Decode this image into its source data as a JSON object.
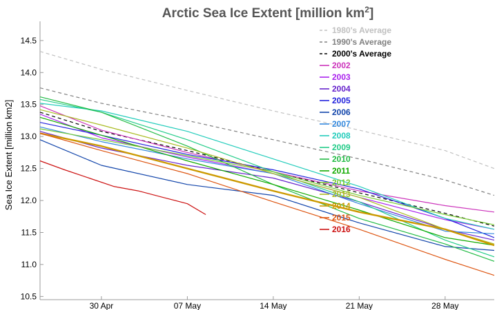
{
  "chart_data": {
    "type": "line",
    "title": "Arctic Sea Ice Extent [million km",
    "title_sup": "2",
    "title_end": "]",
    "xlabel": "",
    "ylabel": "Sea Ice Extent [million km2]",
    "x_range_days": [
      25,
      62
    ],
    "x_ticks": [
      {
        "day": 30,
        "label": "30 Apr"
      },
      {
        "day": 37,
        "label": "07 May"
      },
      {
        "day": 44,
        "label": "14 May"
      },
      {
        "day": 51,
        "label": "21 May"
      },
      {
        "day": 58,
        "label": "28 May"
      }
    ],
    "y_range": [
      10.45,
      14.8
    ],
    "y_ticks": [
      10.5,
      11.0,
      11.5,
      12.0,
      12.5,
      13.0,
      13.5,
      14.0,
      14.5
    ],
    "grid": false,
    "legend_position": "top-right",
    "series": [
      {
        "name": "1980's Average",
        "color": "#c0c0c0",
        "dash": true,
        "width": 1.2,
        "points": [
          [
            25,
            14.33
          ],
          [
            30,
            14.05
          ],
          [
            37,
            13.72
          ],
          [
            44,
            13.4
          ],
          [
            51,
            13.1
          ],
          [
            58,
            12.78
          ],
          [
            62,
            12.5
          ]
        ]
      },
      {
        "name": "1990's Average",
        "color": "#808080",
        "dash": true,
        "width": 1.2,
        "points": [
          [
            25,
            13.76
          ],
          [
            30,
            13.52
          ],
          [
            37,
            13.25
          ],
          [
            44,
            12.95
          ],
          [
            51,
            12.65
          ],
          [
            58,
            12.32
          ],
          [
            62,
            12.08
          ]
        ]
      },
      {
        "name": "2000's Average",
        "color": "#000000",
        "dash": true,
        "width": 1.2,
        "points": [
          [
            25,
            13.38
          ],
          [
            30,
            13.08
          ],
          [
            37,
            12.78
          ],
          [
            44,
            12.45
          ],
          [
            51,
            12.12
          ],
          [
            58,
            11.8
          ],
          [
            62,
            11.6
          ]
        ]
      },
      {
        "name": "2002",
        "color": "#cc33bb",
        "dash": false,
        "width": 1.2,
        "points": [
          [
            25,
            13.48
          ],
          [
            30,
            13.1
          ],
          [
            37,
            12.75
          ],
          [
            44,
            12.45
          ],
          [
            51,
            12.15
          ],
          [
            58,
            11.92
          ],
          [
            62,
            11.82
          ]
        ]
      },
      {
        "name": "2003",
        "color": "#aa22ee",
        "dash": false,
        "width": 1.2,
        "points": [
          [
            25,
            13.35
          ],
          [
            30,
            12.98
          ],
          [
            37,
            12.68
          ],
          [
            44,
            12.42
          ],
          [
            51,
            12.05
          ],
          [
            58,
            11.7
          ],
          [
            62,
            11.55
          ]
        ]
      },
      {
        "name": "2004",
        "color": "#6622cc",
        "dash": false,
        "width": 1.2,
        "points": [
          [
            25,
            13.08
          ],
          [
            30,
            12.82
          ],
          [
            37,
            12.55
          ],
          [
            44,
            12.35
          ],
          [
            51,
            11.98
          ],
          [
            58,
            11.55
          ],
          [
            62,
            11.38
          ]
        ]
      },
      {
        "name": "2005",
        "color": "#2222dd",
        "dash": false,
        "width": 1.2,
        "points": [
          [
            25,
            13.22
          ],
          [
            30,
            13.02
          ],
          [
            37,
            12.72
          ],
          [
            44,
            12.48
          ],
          [
            51,
            12.18
          ],
          [
            58,
            11.72
          ],
          [
            62,
            11.42
          ]
        ]
      },
      {
        "name": "2006",
        "color": "#1144aa",
        "dash": false,
        "width": 1.2,
        "points": [
          [
            25,
            12.95
          ],
          [
            30,
            12.55
          ],
          [
            37,
            12.25
          ],
          [
            44,
            12.08
          ],
          [
            51,
            11.65
          ],
          [
            58,
            11.28
          ],
          [
            62,
            11.22
          ]
        ]
      },
      {
        "name": "2007",
        "color": "#3388dd",
        "dash": false,
        "width": 1.2,
        "points": [
          [
            25,
            13.15
          ],
          [
            30,
            12.92
          ],
          [
            37,
            12.65
          ],
          [
            44,
            12.42
          ],
          [
            51,
            11.95
          ],
          [
            58,
            11.52
          ],
          [
            62,
            11.48
          ]
        ]
      },
      {
        "name": "2008",
        "color": "#22ccbb",
        "dash": false,
        "width": 1.2,
        "points": [
          [
            25,
            13.52
          ],
          [
            30,
            13.4
          ],
          [
            37,
            13.08
          ],
          [
            44,
            12.65
          ],
          [
            51,
            12.22
          ],
          [
            58,
            11.72
          ],
          [
            62,
            11.55
          ]
        ]
      },
      {
        "name": "2009",
        "color": "#22cc88",
        "dash": false,
        "width": 1.2,
        "points": [
          [
            25,
            13.58
          ],
          [
            30,
            13.38
          ],
          [
            37,
            12.95
          ],
          [
            44,
            12.45
          ],
          [
            51,
            11.98
          ],
          [
            58,
            11.38
          ],
          [
            62,
            11.12
          ]
        ]
      },
      {
        "name": "2010",
        "color": "#22bb44",
        "dash": false,
        "width": 1.2,
        "points": [
          [
            25,
            13.62
          ],
          [
            30,
            13.38
          ],
          [
            37,
            12.85
          ],
          [
            44,
            12.25
          ],
          [
            51,
            11.72
          ],
          [
            58,
            11.32
          ],
          [
            62,
            11.05
          ]
        ]
      },
      {
        "name": "2011",
        "color": "#11aa00",
        "dash": false,
        "width": 1.2,
        "points": [
          [
            25,
            13.3
          ],
          [
            30,
            13.02
          ],
          [
            37,
            12.62
          ],
          [
            44,
            12.25
          ],
          [
            51,
            11.85
          ],
          [
            58,
            11.42
          ],
          [
            62,
            11.3
          ]
        ]
      },
      {
        "name": "2012",
        "color": "#77cc33",
        "dash": false,
        "width": 1.2,
        "points": [
          [
            25,
            13.12
          ],
          [
            30,
            12.95
          ],
          [
            37,
            12.7
          ],
          [
            44,
            12.45
          ],
          [
            51,
            12.08
          ],
          [
            58,
            11.78
          ],
          [
            62,
            11.62
          ]
        ]
      },
      {
        "name": "2013",
        "color": "#aabb22",
        "dash": false,
        "width": 1.2,
        "points": [
          [
            25,
            13.42
          ],
          [
            30,
            13.18
          ],
          [
            37,
            12.82
          ],
          [
            44,
            12.42
          ],
          [
            51,
            12.05
          ],
          [
            58,
            11.55
          ],
          [
            62,
            11.32
          ]
        ]
      },
      {
        "name": "2014",
        "color": "#cc9900",
        "dash": false,
        "width": 2.4,
        "points": [
          [
            25,
            13.05
          ],
          [
            30,
            12.85
          ],
          [
            37,
            12.5
          ],
          [
            44,
            12.15
          ],
          [
            51,
            11.82
          ],
          [
            58,
            11.55
          ],
          [
            62,
            11.3
          ]
        ]
      },
      {
        "name": "2015",
        "color": "#dd5511",
        "dash": false,
        "width": 1.2,
        "points": [
          [
            25,
            13.05
          ],
          [
            30,
            12.78
          ],
          [
            37,
            12.42
          ],
          [
            44,
            11.98
          ],
          [
            51,
            11.55
          ],
          [
            58,
            11.08
          ],
          [
            62,
            10.83
          ]
        ]
      },
      {
        "name": "2016",
        "color": "#cc1111",
        "dash": false,
        "width": 1.2,
        "points": [
          [
            25,
            12.62
          ],
          [
            27,
            12.48
          ],
          [
            29,
            12.35
          ],
          [
            31,
            12.22
          ],
          [
            33,
            12.15
          ],
          [
            35,
            12.05
          ],
          [
            37,
            11.95
          ],
          [
            38.5,
            11.78
          ]
        ]
      }
    ]
  }
}
